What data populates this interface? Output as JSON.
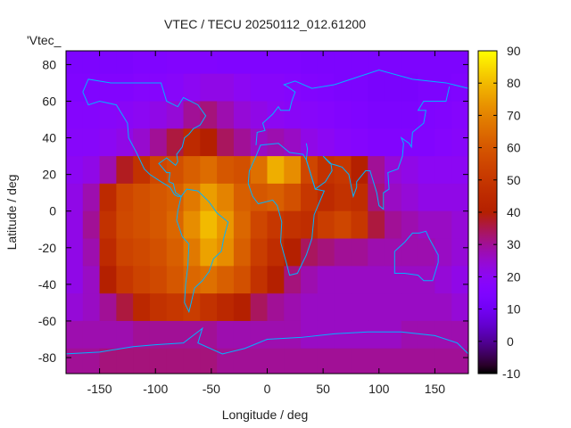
{
  "chart_data": {
    "type": "heatmap",
    "title": "VTEC / TECU 20250112_012.61200",
    "xlabel": "Longitude / deg",
    "ylabel": "Latitude / deg",
    "key_label": "'Vtec_",
    "xlim": [
      -180,
      180
    ],
    "ylim": [
      -88.75,
      87.5
    ],
    "xticks": [
      -150,
      -100,
      -50,
      0,
      50,
      100,
      150
    ],
    "yticks": [
      -80,
      -60,
      -40,
      -20,
      0,
      20,
      40,
      60,
      80
    ],
    "cbrange": [
      -10,
      90
    ],
    "cbticks": [
      -10,
      0,
      10,
      20,
      30,
      40,
      50,
      60,
      70,
      80,
      90
    ],
    "palette": "gnuplot rgbformulae 7,5,15",
    "coastline_color": "#00b4ff",
    "lon_centers": [
      -172.5,
      -157.5,
      -142.5,
      -127.5,
      -112.5,
      -97.5,
      -82.5,
      -67.5,
      -52.5,
      -37.5,
      -22.5,
      -7.5,
      7.5,
      22.5,
      37.5,
      52.5,
      67.5,
      82.5,
      97.5,
      112.5,
      127.5,
      142.5,
      157.5,
      172.5
    ],
    "lat_centers": [
      82.5,
      67.5,
      52.5,
      37.5,
      22.5,
      7.5,
      -7.5,
      -22.5,
      -37.5,
      -52.5,
      -67.5,
      -82.5
    ],
    "values": [
      [
        14,
        14,
        14,
        14,
        15,
        15,
        16,
        16,
        16,
        15,
        15,
        15,
        15,
        15,
        14,
        14,
        14,
        14,
        14,
        14,
        14,
        14,
        14,
        14
      ],
      [
        15,
        15,
        16,
        16,
        17,
        17,
        18,
        20,
        22,
        22,
        20,
        18,
        18,
        17,
        16,
        15,
        14,
        14,
        13,
        13,
        13,
        14,
        14,
        15
      ],
      [
        17,
        17,
        18,
        19,
        20,
        22,
        24,
        30,
        32,
        28,
        24,
        22,
        20,
        19,
        18,
        17,
        16,
        15,
        14,
        14,
        14,
        15,
        16,
        17
      ],
      [
        18,
        18,
        20,
        22,
        25,
        30,
        36,
        45,
        40,
        34,
        30,
        26,
        28,
        26,
        22,
        20,
        18,
        17,
        16,
        16,
        16,
        16,
        17,
        18
      ],
      [
        20,
        22,
        28,
        38,
        48,
        55,
        58,
        62,
        65,
        60,
        58,
        66,
        78,
        72,
        55,
        48,
        50,
        40,
        30,
        24,
        22,
        20,
        20,
        20
      ],
      [
        22,
        28,
        45,
        55,
        58,
        60,
        62,
        68,
        75,
        70,
        62,
        60,
        62,
        58,
        50,
        45,
        48,
        46,
        32,
        26,
        24,
        22,
        22,
        22
      ],
      [
        22,
        30,
        48,
        56,
        58,
        60,
        64,
        72,
        80,
        74,
        64,
        55,
        50,
        48,
        46,
        52,
        55,
        50,
        36,
        30,
        28,
        26,
        26,
        24
      ],
      [
        22,
        28,
        45,
        54,
        56,
        58,
        62,
        68,
        76,
        72,
        62,
        52,
        46,
        40,
        34,
        32,
        30,
        30,
        28,
        28,
        28,
        28,
        26,
        24
      ],
      [
        22,
        26,
        40,
        50,
        54,
        56,
        60,
        64,
        66,
        62,
        58,
        48,
        40,
        32,
        28,
        26,
        26,
        26,
        26,
        26,
        26,
        26,
        24,
        22
      ],
      [
        24,
        26,
        30,
        36,
        44,
        48,
        50,
        52,
        48,
        44,
        40,
        34,
        30,
        28,
        26,
        26,
        26,
        26,
        26,
        26,
        26,
        26,
        26,
        24
      ],
      [
        28,
        28,
        28,
        28,
        30,
        30,
        30,
        30,
        30,
        28,
        28,
        28,
        28,
        28,
        26,
        26,
        26,
        26,
        26,
        26,
        28,
        28,
        28,
        28
      ],
      [
        30,
        30,
        32,
        32,
        32,
        32,
        32,
        32,
        32,
        30,
        30,
        30,
        30,
        30,
        30,
        30,
        30,
        30,
        30,
        30,
        30,
        30,
        30,
        30
      ]
    ],
    "coastlines": [
      [
        [
          -165,
          65
        ],
        [
          -160,
          58
        ],
        [
          -150,
          60
        ],
        [
          -135,
          58
        ],
        [
          -125,
          48
        ],
        [
          -124,
          40
        ],
        [
          -117,
          32
        ],
        [
          -110,
          23
        ],
        [
          -105,
          20
        ],
        [
          -95,
          16
        ],
        [
          -87,
          13
        ],
        [
          -83,
          9
        ],
        [
          -80,
          8
        ],
        [
          -77,
          8
        ],
        [
          -82,
          10
        ],
        [
          -84,
          15
        ],
        [
          -88,
          16
        ],
        [
          -87,
          21
        ],
        [
          -90,
          21
        ],
        [
          -97,
          26
        ],
        [
          -90,
          29
        ],
        [
          -82,
          25
        ],
        [
          -80,
          27
        ],
        [
          -81,
          31
        ],
        [
          -76,
          35
        ],
        [
          -74,
          40
        ],
        [
          -70,
          42
        ],
        [
          -66,
          45
        ],
        [
          -60,
          47
        ],
        [
          -55,
          52
        ],
        [
          -62,
          58
        ],
        [
          -75,
          62
        ],
        [
          -80,
          57
        ],
        [
          -90,
          60
        ],
        [
          -95,
          70
        ],
        [
          -120,
          70
        ],
        [
          -140,
          70
        ],
        [
          -160,
          72
        ],
        [
          -165,
          65
        ]
      ],
      [
        [
          -77,
          8
        ],
        [
          -72,
          12
        ],
        [
          -62,
          11
        ],
        [
          -52,
          5
        ],
        [
          -45,
          -1
        ],
        [
          -35,
          -6
        ],
        [
          -39,
          -15
        ],
        [
          -41,
          -22
        ],
        [
          -48,
          -26
        ],
        [
          -52,
          -33
        ],
        [
          -58,
          -38
        ],
        [
          -65,
          -42
        ],
        [
          -68,
          -50
        ],
        [
          -70,
          -55
        ],
        [
          -74,
          -50
        ],
        [
          -73,
          -40
        ],
        [
          -71,
          -30
        ],
        [
          -70,
          -18
        ],
        [
          -76,
          -14
        ],
        [
          -81,
          -5
        ],
        [
          -80,
          0
        ],
        [
          -77,
          8
        ]
      ],
      [
        [
          -17,
          15
        ],
        [
          -16,
          22
        ],
        [
          -10,
          30
        ],
        [
          -6,
          36
        ],
        [
          10,
          37
        ],
        [
          20,
          32
        ],
        [
          32,
          31
        ],
        [
          35,
          28
        ],
        [
          43,
          12
        ],
        [
          51,
          11
        ],
        [
          42,
          -2
        ],
        [
          40,
          -15
        ],
        [
          35,
          -24
        ],
        [
          27,
          -34
        ],
        [
          20,
          -35
        ],
        [
          17,
          -28
        ],
        [
          12,
          -17
        ],
        [
          13,
          -6
        ],
        [
          9,
          3
        ],
        [
          5,
          6
        ],
        [
          -8,
          4
        ],
        [
          -13,
          8
        ],
        [
          -17,
          15
        ]
      ],
      [
        [
          -10,
          36
        ],
        [
          -9,
          43
        ],
        [
          -2,
          44
        ],
        [
          -4,
          48
        ],
        [
          5,
          53
        ],
        [
          10,
          57
        ],
        [
          12,
          55
        ],
        [
          20,
          55
        ],
        [
          22,
          60
        ],
        [
          25,
          65
        ],
        [
          18,
          68
        ],
        [
          15,
          69
        ],
        [
          25,
          71
        ],
        [
          40,
          67
        ],
        [
          60,
          69
        ],
        [
          80,
          73
        ],
        [
          100,
          77
        ],
        [
          130,
          72
        ],
        [
          160,
          70
        ],
        [
          180,
          67
        ]
      ],
      [
        [
          35,
          37
        ],
        [
          36,
          34
        ],
        [
          35,
          28
        ],
        [
          43,
          12
        ],
        [
          52,
          16
        ],
        [
          58,
          22
        ],
        [
          57,
          26
        ],
        [
          50,
          30
        ],
        [
          56,
          26
        ],
        [
          62,
          25
        ],
        [
          67,
          24
        ],
        [
          73,
          20
        ],
        [
          77,
          8
        ],
        [
          80,
          13
        ],
        [
          80,
          16
        ],
        [
          88,
          22
        ],
        [
          92,
          22
        ],
        [
          95,
          16
        ],
        [
          98,
          10
        ],
        [
          100,
          3
        ],
        [
          104,
          1
        ],
        [
          104,
          10
        ],
        [
          109,
          12
        ],
        [
          108,
          21
        ],
        [
          117,
          23
        ],
        [
          121,
          30
        ],
        [
          122,
          37
        ],
        [
          120,
          40
        ],
        [
          127,
          37
        ],
        [
          129,
          35
        ],
        [
          130,
          43
        ],
        [
          140,
          48
        ],
        [
          142,
          55
        ],
        [
          135,
          55
        ],
        [
          140,
          60
        ],
        [
          160,
          60
        ],
        [
          163,
          68
        ]
      ],
      [
        [
          114,
          -22
        ],
        [
          114,
          -34
        ],
        [
          123,
          -34
        ],
        [
          135,
          -35
        ],
        [
          140,
          -38
        ],
        [
          148,
          -38
        ],
        [
          153,
          -28
        ],
        [
          153,
          -24
        ],
        [
          145,
          -15
        ],
        [
          142,
          -11
        ],
        [
          136,
          -12
        ],
        [
          130,
          -12
        ],
        [
          123,
          -17
        ],
        [
          114,
          -22
        ]
      ],
      [
        [
          -180,
          -78
        ],
        [
          -150,
          -77
        ],
        [
          -120,
          -74
        ],
        [
          -100,
          -73
        ],
        [
          -75,
          -72
        ],
        [
          -60,
          -65
        ],
        [
          -58,
          -64
        ],
        [
          -62,
          -72
        ],
        [
          -40,
          -78
        ],
        [
          -20,
          -75
        ],
        [
          0,
          -70
        ],
        [
          30,
          -69
        ],
        [
          60,
          -67
        ],
        [
          90,
          -66
        ],
        [
          120,
          -66
        ],
        [
          150,
          -68
        ],
        [
          170,
          -72
        ],
        [
          180,
          -78
        ]
      ]
    ]
  }
}
